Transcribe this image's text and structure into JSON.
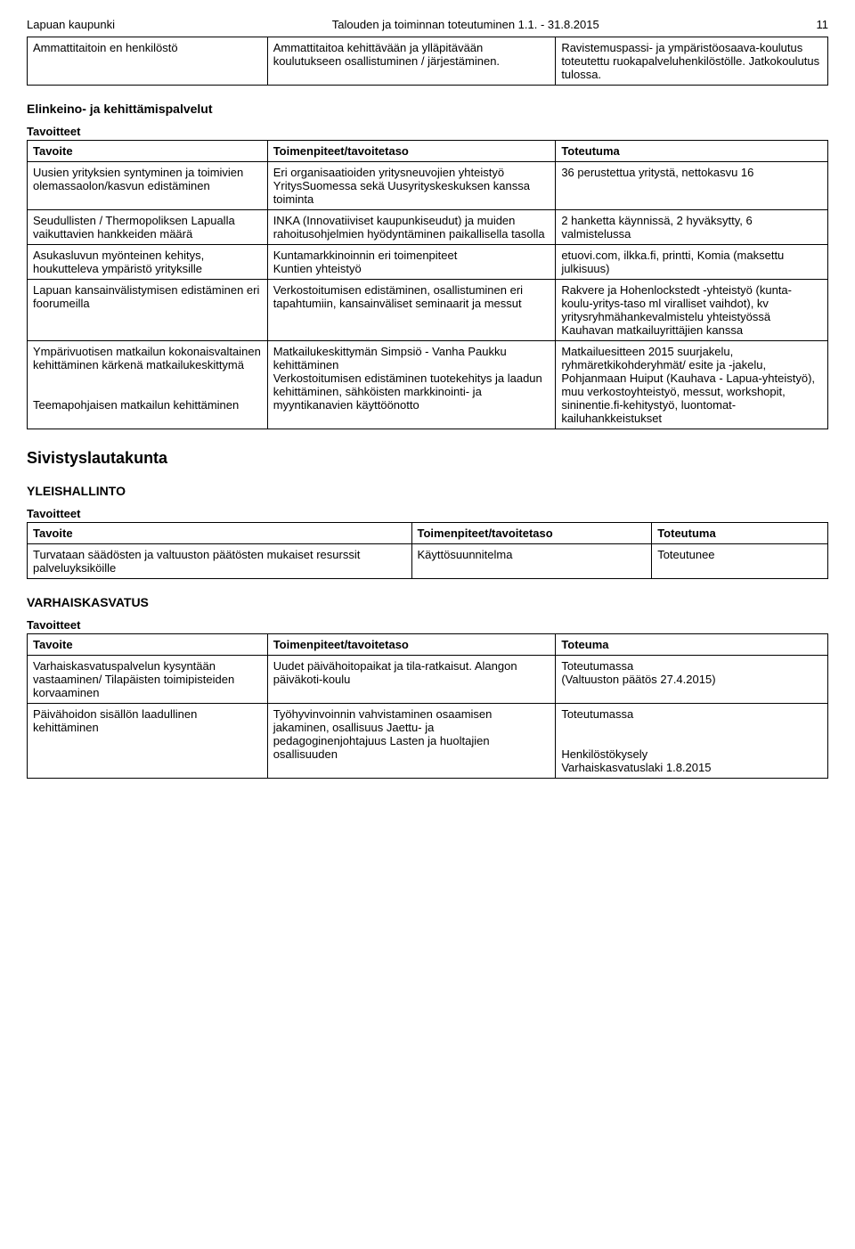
{
  "header": {
    "org": "Lapuan kaupunki",
    "title": "Talouden ja toiminnan toteutuminen 1.1. - 31.8.2015",
    "page": "11"
  },
  "intro_table": {
    "cells": {
      "r0c0": "Ammattitaitoin en henkilöstö",
      "r0c1": "Ammattitaitoa kehittävään ja ylläpitävään koulutukseen osallistuminen / järjestäminen.",
      "r0c2": "Ravistemuspassi- ja ympäristöosaava-koulutus toteutettu ruokapalveluhenkilöstölle. Jatkokoulutus tulossa."
    }
  },
  "s1": {
    "title": "Elinkeino- ja kehittämispalvelut",
    "subtitle": "Tavoitteet",
    "head": {
      "c0": "Tavoite",
      "c1": "Toimenpiteet/tavoitetaso",
      "c2": "Toteutuma"
    },
    "rows": [
      {
        "c0": "Uusien yrityksien syntyminen ja toimivien olemassaolon/kasvun edistäminen",
        "c1": "Eri organisaatioiden yritysneuvojien yhteistyö YritysSuomessa sekä Uusyrityskeskuksen kanssa toiminta",
        "c2": "36 perustettua yritystä, nettokasvu 16"
      },
      {
        "c0": "Seudullisten / Thermopoliksen Lapualla vaikuttavien hankkeiden määrä",
        "c1": "INKA (Innovatiiviset kaupunkiseudut) ja muiden rahoitusohjelmien hyödyntäminen paikallisella tasolla",
        "c2": "2 hanketta käynnissä, 2 hyväksytty, 6 valmistelussa"
      },
      {
        "c0": "Asukasluvun myönteinen kehitys, houkutteleva ympäristö yrityksille",
        "c1": "Kuntamarkkinoinnin eri toimenpiteet\nKuntien yhteistyö",
        "c2": "etuovi.com, ilkka.fi, printti, Komia (maksettu julkisuus)"
      },
      {
        "c0": "Lapuan kansainvälistymisen edistäminen eri foorumeilla",
        "c1": "Verkostoitumisen edistäminen, osallistuminen eri tapahtumiin, kansainväliset seminaarit ja messut",
        "c2": "Rakvere ja Hohenlockstedt -yhteistyö (kunta-koulu-yritys-taso ml viralliset vaihdot), kv yritysryhmähankevalmistelu yhteistyössä Kauhavan matkailuyrittäjien kanssa"
      },
      {
        "c0": "Ympärivuotisen matkailun kokonaisvaltainen kehittäminen kärkenä matkailukeskittymä\n\nTeemapohjaisen matkailun kehittäminen",
        "c1": "Matkailukeskittymän Simpsiö - Vanha Paukku kehittäminen\nVerkostoitumisen edistäminen tuotekehitys ja laadun kehittäminen, sähköisten markkinointi- ja myyntikanavien käyttöönotto",
        "c2": "Matkailuesitteen 2015 suurjakelu, ryhmäretkikohderyhmät/ esite ja -jakelu, Pohjanmaan Huiput (Kauhava - Lapua-yhteistyö), muu verkostoyhteistyö, messut, workshopit, sininentie.fi-kehitystyö, luontomat-kailuhankkeistukset"
      }
    ]
  },
  "s2": {
    "title": "Sivistyslautakunta",
    "sub1": "YLEISHALLINTO",
    "subtitle": "Tavoitteet",
    "head": {
      "c0": "Tavoite",
      "c1": "Toimenpiteet/tavoitetaso",
      "c2": "Toteutuma"
    },
    "rows": [
      {
        "c0": "Turvataan säädösten ja valtuuston päätösten mukaiset resurssit palveluyksiköille",
        "c1": "Käyttösuunnitelma",
        "c2": "Toteutunee"
      }
    ]
  },
  "s3": {
    "sub1": "VARHAISKASVATUS",
    "subtitle": "Tavoitteet",
    "head": {
      "c0": "Tavoite",
      "c1": "Toimenpiteet/tavoitetaso",
      "c2": "Toteuma"
    },
    "rows": [
      {
        "c0": "Varhaiskasvatuspalvelun kysyntään vastaaminen/ Tilapäisten toimipisteiden korvaaminen",
        "c1": "Uudet päivähoitopaikat ja tila-ratkaisut. Alangon päiväkoti-koulu",
        "c2": "Toteutumassa\n(Valtuuston päätös 27.4.2015)"
      },
      {
        "c0": "Päivähoidon sisällön laadullinen kehittäminen",
        "c1": "Työhyvinvoinnin vahvistaminen osaamisen jakaminen, osallisuus Jaettu- ja pedagoginenjohtajuus Lasten ja huoltajien osallisuuden",
        "c2": "Toteutumassa\n\nHenkilöstökysely\nVarhaiskasvatuslaki 1.8.2015"
      }
    ]
  }
}
